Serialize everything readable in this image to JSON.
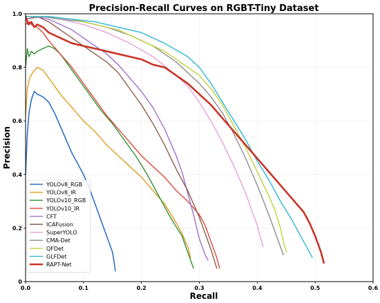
{
  "chart_data": {
    "type": "line",
    "title": "Precision-Recall Curves on RGBT-Tiny Dataset",
    "xlabel": "Recall",
    "ylabel": "Precision",
    "xlim": [
      0,
      0.6
    ],
    "ylim": [
      0,
      1.0
    ],
    "xticks": [
      "0.0",
      "0.1",
      "0.2",
      "0.3",
      "0.4",
      "0.5",
      "0.6"
    ],
    "yticks": [
      "0",
      "0.2",
      "0.4",
      "0.6",
      "0.8",
      "1.0"
    ],
    "grid": true,
    "legend_position": "lower-left",
    "series": [
      {
        "name": "YOLOv8_RGB",
        "color": "#2f6fbf",
        "width": 1.6,
        "points": [
          [
            0,
            0.4
          ],
          [
            0.003,
            0.55
          ],
          [
            0.006,
            0.63
          ],
          [
            0.01,
            0.68
          ],
          [
            0.015,
            0.71
          ],
          [
            0.02,
            0.7
          ],
          [
            0.03,
            0.69
          ],
          [
            0.04,
            0.67
          ],
          [
            0.05,
            0.63
          ],
          [
            0.06,
            0.58
          ],
          [
            0.07,
            0.53
          ],
          [
            0.08,
            0.48
          ],
          [
            0.09,
            0.44
          ],
          [
            0.1,
            0.4
          ],
          [
            0.11,
            0.35
          ],
          [
            0.12,
            0.29
          ],
          [
            0.13,
            0.23
          ],
          [
            0.14,
            0.17
          ],
          [
            0.15,
            0.11
          ],
          [
            0.153,
            0.07
          ],
          [
            0.155,
            0.04
          ]
        ]
      },
      {
        "name": "YOLOv8_IR",
        "color": "#e09a1e",
        "width": 1.4,
        "points": [
          [
            0,
            0.62
          ],
          [
            0.003,
            0.72
          ],
          [
            0.007,
            0.76
          ],
          [
            0.012,
            0.78
          ],
          [
            0.02,
            0.8
          ],
          [
            0.03,
            0.79
          ],
          [
            0.04,
            0.76
          ],
          [
            0.06,
            0.7
          ],
          [
            0.08,
            0.65
          ],
          [
            0.1,
            0.6
          ],
          [
            0.12,
            0.56
          ],
          [
            0.14,
            0.51
          ],
          [
            0.16,
            0.47
          ],
          [
            0.18,
            0.43
          ],
          [
            0.2,
            0.39
          ],
          [
            0.22,
            0.34
          ],
          [
            0.24,
            0.29
          ],
          [
            0.26,
            0.22
          ],
          [
            0.27,
            0.18
          ],
          [
            0.28,
            0.13
          ],
          [
            0.285,
            0.09
          ]
        ]
      },
      {
        "name": "YOLOv10_RGB",
        "color": "#2f8f2f",
        "width": 1.4,
        "points": [
          [
            0,
            0.8
          ],
          [
            0.003,
            0.87
          ],
          [
            0.006,
            0.84
          ],
          [
            0.01,
            0.86
          ],
          [
            0.015,
            0.85
          ],
          [
            0.02,
            0.86
          ],
          [
            0.03,
            0.87
          ],
          [
            0.04,
            0.88
          ],
          [
            0.05,
            0.87
          ],
          [
            0.06,
            0.85
          ],
          [
            0.07,
            0.82
          ],
          [
            0.09,
            0.76
          ],
          [
            0.11,
            0.7
          ],
          [
            0.13,
            0.64
          ],
          [
            0.15,
            0.59
          ],
          [
            0.17,
            0.53
          ],
          [
            0.19,
            0.47
          ],
          [
            0.21,
            0.4
          ],
          [
            0.23,
            0.32
          ],
          [
            0.25,
            0.24
          ],
          [
            0.27,
            0.17
          ],
          [
            0.28,
            0.11
          ],
          [
            0.29,
            0.05
          ]
        ]
      },
      {
        "name": "YOLOv10_IR",
        "color": "#d9453a",
        "width": 1.4,
        "points": [
          [
            0,
            0.96
          ],
          [
            0.005,
            0.97
          ],
          [
            0.01,
            0.96
          ],
          [
            0.02,
            0.95
          ],
          [
            0.03,
            0.93
          ],
          [
            0.04,
            0.9
          ],
          [
            0.06,
            0.85
          ],
          [
            0.08,
            0.8
          ],
          [
            0.1,
            0.74
          ],
          [
            0.12,
            0.68
          ],
          [
            0.14,
            0.62
          ],
          [
            0.16,
            0.57
          ],
          [
            0.18,
            0.52
          ],
          [
            0.2,
            0.47
          ],
          [
            0.22,
            0.43
          ],
          [
            0.24,
            0.39
          ],
          [
            0.26,
            0.34
          ],
          [
            0.28,
            0.3
          ],
          [
            0.3,
            0.25
          ],
          [
            0.31,
            0.21
          ],
          [
            0.32,
            0.15
          ],
          [
            0.33,
            0.09
          ],
          [
            0.335,
            0.05
          ]
        ]
      },
      {
        "name": "CFT",
        "color": "#9b6fd0",
        "width": 1.4,
        "points": [
          [
            0,
            0.98
          ],
          [
            0.02,
            0.99
          ],
          [
            0.04,
            0.98
          ],
          [
            0.06,
            0.96
          ],
          [
            0.08,
            0.94
          ],
          [
            0.1,
            0.91
          ],
          [
            0.12,
            0.88
          ],
          [
            0.14,
            0.85
          ],
          [
            0.16,
            0.81
          ],
          [
            0.18,
            0.76
          ],
          [
            0.2,
            0.71
          ],
          [
            0.22,
            0.65
          ],
          [
            0.24,
            0.57
          ],
          [
            0.26,
            0.47
          ],
          [
            0.27,
            0.41
          ],
          [
            0.28,
            0.33
          ],
          [
            0.29,
            0.25
          ],
          [
            0.3,
            0.16
          ],
          [
            0.31,
            0.1
          ],
          [
            0.315,
            0.08
          ]
        ]
      },
      {
        "name": "ICAFusion",
        "color": "#8b5a4a",
        "width": 1.4,
        "points": [
          [
            0,
            0.98
          ],
          [
            0.02,
            0.99
          ],
          [
            0.04,
            0.97
          ],
          [
            0.06,
            0.94
          ],
          [
            0.08,
            0.91
          ],
          [
            0.1,
            0.88
          ],
          [
            0.12,
            0.85
          ],
          [
            0.14,
            0.82
          ],
          [
            0.16,
            0.78
          ],
          [
            0.18,
            0.72
          ],
          [
            0.2,
            0.66
          ],
          [
            0.22,
            0.59
          ],
          [
            0.24,
            0.51
          ],
          [
            0.26,
            0.42
          ],
          [
            0.28,
            0.34
          ],
          [
            0.3,
            0.24
          ],
          [
            0.31,
            0.18
          ],
          [
            0.32,
            0.12
          ],
          [
            0.33,
            0.05
          ]
        ]
      },
      {
        "name": "SuperYOLO",
        "color": "#e6a0d6",
        "width": 1.4,
        "points": [
          [
            0,
            0.98
          ],
          [
            0.03,
            0.99
          ],
          [
            0.06,
            0.98
          ],
          [
            0.1,
            0.96
          ],
          [
            0.14,
            0.93
          ],
          [
            0.18,
            0.89
          ],
          [
            0.22,
            0.84
          ],
          [
            0.26,
            0.77
          ],
          [
            0.28,
            0.73
          ],
          [
            0.3,
            0.67
          ],
          [
            0.32,
            0.6
          ],
          [
            0.34,
            0.52
          ],
          [
            0.36,
            0.43
          ],
          [
            0.38,
            0.33
          ],
          [
            0.4,
            0.21
          ],
          [
            0.41,
            0.13
          ]
        ]
      },
      {
        "name": "CMA-Det",
        "color": "#8c8c8c",
        "width": 1.4,
        "points": [
          [
            0,
            0.98
          ],
          [
            0.03,
            0.99
          ],
          [
            0.06,
            0.98
          ],
          [
            0.1,
            0.97
          ],
          [
            0.14,
            0.95
          ],
          [
            0.18,
            0.92
          ],
          [
            0.22,
            0.88
          ],
          [
            0.26,
            0.82
          ],
          [
            0.3,
            0.74
          ],
          [
            0.32,
            0.69
          ],
          [
            0.34,
            0.63
          ],
          [
            0.36,
            0.55
          ],
          [
            0.38,
            0.46
          ],
          [
            0.4,
            0.36
          ],
          [
            0.42,
            0.25
          ],
          [
            0.44,
            0.13
          ],
          [
            0.445,
            0.1
          ]
        ]
      },
      {
        "name": "QFDet",
        "color": "#c2cf3a",
        "width": 1.4,
        "points": [
          [
            0,
            0.99
          ],
          [
            0.04,
            0.99
          ],
          [
            0.08,
            0.98
          ],
          [
            0.12,
            0.96
          ],
          [
            0.16,
            0.94
          ],
          [
            0.2,
            0.9
          ],
          [
            0.24,
            0.86
          ],
          [
            0.28,
            0.8
          ],
          [
            0.3,
            0.77
          ],
          [
            0.32,
            0.72
          ],
          [
            0.34,
            0.66
          ],
          [
            0.36,
            0.58
          ],
          [
            0.38,
            0.5
          ],
          [
            0.4,
            0.41
          ],
          [
            0.42,
            0.32
          ],
          [
            0.43,
            0.27
          ],
          [
            0.44,
            0.2
          ],
          [
            0.445,
            0.15
          ],
          [
            0.45,
            0.11
          ]
        ]
      },
      {
        "name": "GLFDet",
        "color": "#2ab6d6",
        "width": 1.4,
        "points": [
          [
            0,
            0.99
          ],
          [
            0.04,
            0.99
          ],
          [
            0.08,
            0.98
          ],
          [
            0.12,
            0.97
          ],
          [
            0.16,
            0.95
          ],
          [
            0.2,
            0.93
          ],
          [
            0.24,
            0.89
          ],
          [
            0.28,
            0.84
          ],
          [
            0.3,
            0.8
          ],
          [
            0.32,
            0.74
          ],
          [
            0.34,
            0.67
          ],
          [
            0.36,
            0.6
          ],
          [
            0.38,
            0.53
          ],
          [
            0.4,
            0.45
          ],
          [
            0.42,
            0.38
          ],
          [
            0.44,
            0.3
          ],
          [
            0.46,
            0.23
          ],
          [
            0.48,
            0.15
          ],
          [
            0.495,
            0.09
          ]
        ]
      },
      {
        "name": "RAPT-Net",
        "color": "#c93226",
        "width": 2.6,
        "points": [
          [
            0,
            0.99
          ],
          [
            0.005,
            0.96
          ],
          [
            0.01,
            0.97
          ],
          [
            0.015,
            0.95
          ],
          [
            0.02,
            0.96
          ],
          [
            0.03,
            0.95
          ],
          [
            0.04,
            0.93
          ],
          [
            0.06,
            0.91
          ],
          [
            0.08,
            0.89
          ],
          [
            0.1,
            0.88
          ],
          [
            0.12,
            0.87
          ],
          [
            0.14,
            0.86
          ],
          [
            0.16,
            0.85
          ],
          [
            0.18,
            0.84
          ],
          [
            0.2,
            0.83
          ],
          [
            0.22,
            0.81
          ],
          [
            0.24,
            0.8
          ],
          [
            0.26,
            0.77
          ],
          [
            0.28,
            0.74
          ],
          [
            0.3,
            0.7
          ],
          [
            0.32,
            0.66
          ],
          [
            0.34,
            0.61
          ],
          [
            0.36,
            0.56
          ],
          [
            0.38,
            0.51
          ],
          [
            0.4,
            0.46
          ],
          [
            0.42,
            0.41
          ],
          [
            0.44,
            0.36
          ],
          [
            0.46,
            0.31
          ],
          [
            0.48,
            0.26
          ],
          [
            0.49,
            0.22
          ],
          [
            0.5,
            0.17
          ],
          [
            0.51,
            0.11
          ],
          [
            0.515,
            0.07
          ]
        ]
      }
    ]
  }
}
